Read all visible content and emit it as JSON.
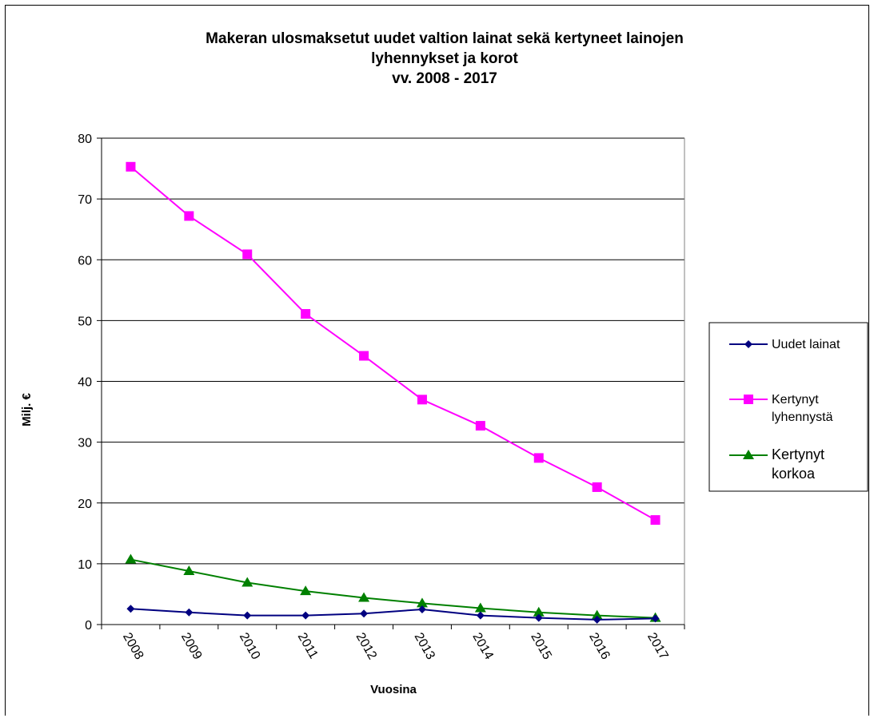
{
  "chart_data": {
    "type": "line",
    "title_lines": [
      "Makeran ulosmaksetut uudet valtion lainat sekä kertyneet lainojen",
      "lyhennykset ja korot",
      "vv. 2008 - 2017"
    ],
    "xlabel": "Vuosina",
    "ylabel": "Milj. €",
    "ylim": [
      0,
      80
    ],
    "yticks": [
      0,
      10,
      20,
      30,
      40,
      50,
      60,
      70,
      80
    ],
    "grid": true,
    "legend_position": "right",
    "categories": [
      "2008",
      "2009",
      "2010",
      "2011",
      "2012",
      "2013",
      "2014",
      "2015",
      "2016",
      "2017"
    ],
    "series": [
      {
        "name": "Uudet lainat",
        "legend_lines": [
          "Uudet lainat"
        ],
        "color": "#000080",
        "marker": "diamond",
        "values": [
          2.6,
          2.0,
          1.5,
          1.5,
          1.8,
          2.5,
          1.5,
          1.1,
          0.8,
          1.0
        ]
      },
      {
        "name": "Kertynyt lyhennystä",
        "legend_lines": [
          "Kertynyt",
          "lyhennystä"
        ],
        "color": "#ff00ff",
        "marker": "square",
        "values": [
          75.3,
          67.2,
          60.9,
          51.1,
          44.2,
          37.0,
          32.7,
          27.4,
          22.6,
          17.2
        ]
      },
      {
        "name": "Kertynyt korkoa",
        "legend_lines": [
          "Kertynyt",
          "korkoa"
        ],
        "color": "#008000",
        "marker": "triangle",
        "values": [
          10.7,
          8.8,
          6.9,
          5.5,
          4.4,
          3.5,
          2.7,
          2.0,
          1.5,
          1.1
        ]
      }
    ]
  }
}
